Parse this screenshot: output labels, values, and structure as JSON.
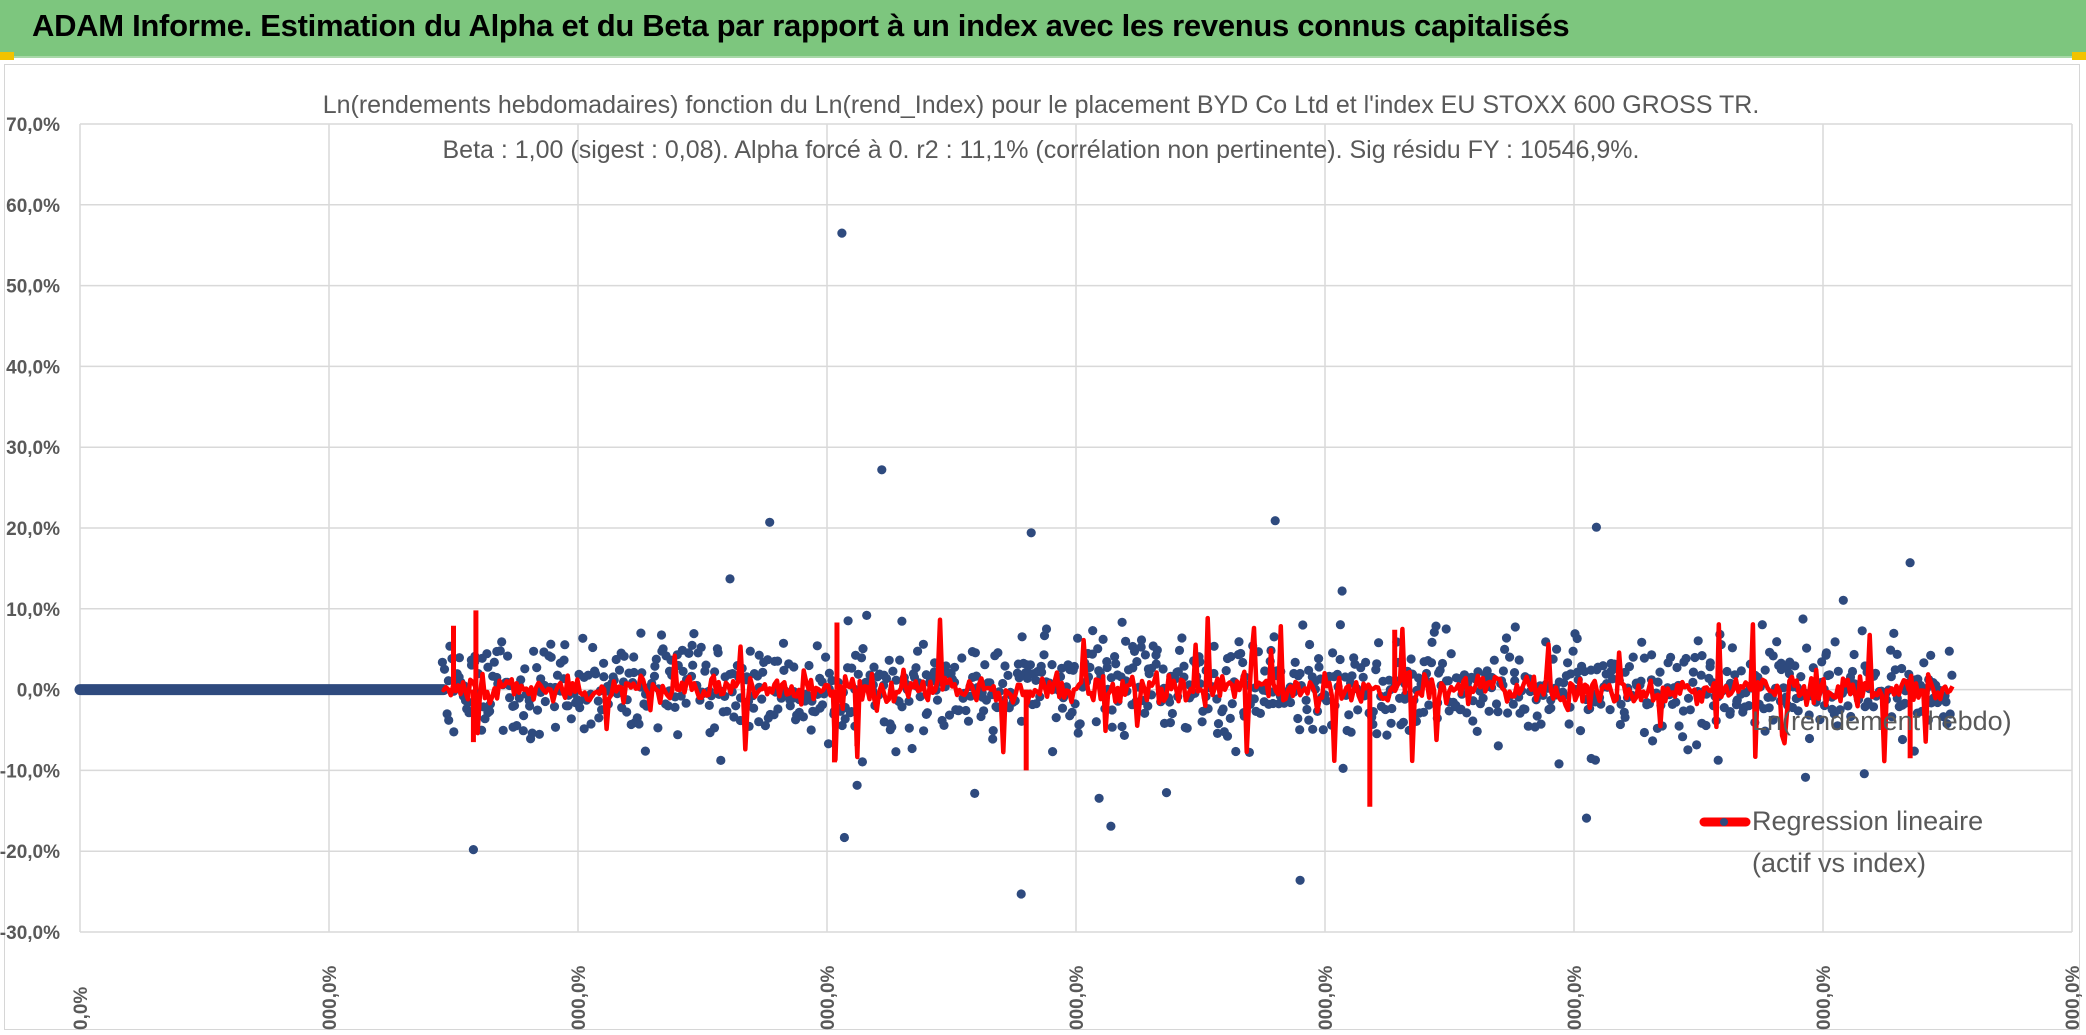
{
  "header": {
    "title": "ADAM Informe. Estimation du Alpha et du Beta par rapport à un index avec les revenus connus capitalisés"
  },
  "colors": {
    "banner": "#7dc67e",
    "scatter": "#2e4a7e",
    "regression": "#ff0000",
    "grid": "#d9d9d9"
  },
  "chart_data": {
    "type": "scatter",
    "title_line1": "Ln(rendements hebdomadaires) fonction du Ln(rend_Index) pour le placement BYD Co Ltd et l'index EU STOXX 600 GROSS TR.",
    "title_line2": "Beta : 1,00 (sigest : 0,08). Alpha forcé à 0. r2 : 11,1% (corrélation non pertinente). Sig résidu FY : 10546,9%.",
    "xlabel": "",
    "ylabel": "",
    "y_ticks": [
      "70,0%",
      "60,0%",
      "50,0%",
      "40,0%",
      "30,0%",
      "20,0%",
      "10,0%",
      "0,0%",
      "-10,0%",
      "-20,0%",
      "-30,0%"
    ],
    "ylim": [
      -30,
      70
    ],
    "x_ticks": [
      "0,0%",
      "000,0%",
      "000,0%",
      "000,0%",
      "000,0%",
      "000,0%",
      "000,0%",
      "000,0%",
      "000,0%"
    ],
    "xlim": [
      0,
      8
    ],
    "grid": true,
    "legend_position": "right",
    "series": [
      {
        "name": "Ln(rendement hebdo)",
        "style": "markers",
        "description": "weekly log returns (%), flat at 0 for first segment then scattered",
        "zero_segment_x": [
          0,
          1.46
        ],
        "scatter_x_range": [
          1.46,
          7.52
        ],
        "notable_points": [
          {
            "x": 3.06,
            "y": 56.5
          },
          {
            "x": 3.22,
            "y": 27.2
          },
          {
            "x": 1.58,
            "y": -19.8
          },
          {
            "x": 3.07,
            "y": -18.3
          },
          {
            "x": 3.78,
            "y": -25.3
          },
          {
            "x": 4.14,
            "y": -16.9
          },
          {
            "x": 4.8,
            "y": 20.9
          },
          {
            "x": 4.9,
            "y": -23.6
          },
          {
            "x": 6.09,
            "y": 20.1
          },
          {
            "x": 2.77,
            "y": 20.7
          },
          {
            "x": 3.82,
            "y": 19.4
          },
          {
            "x": 6.05,
            "y": -15.9
          },
          {
            "x": 7.35,
            "y": 15.7
          }
        ]
      },
      {
        "name": "Regression lineaire (actif vs index)",
        "style": "line",
        "description": "fitted values, beta 1.00, alpha 0"
      }
    ],
    "legend": {
      "item1": "Ln(rendement hebdo)",
      "item2_line1": "Regression lineaire",
      "item2_line2": "(actif vs index)"
    }
  }
}
